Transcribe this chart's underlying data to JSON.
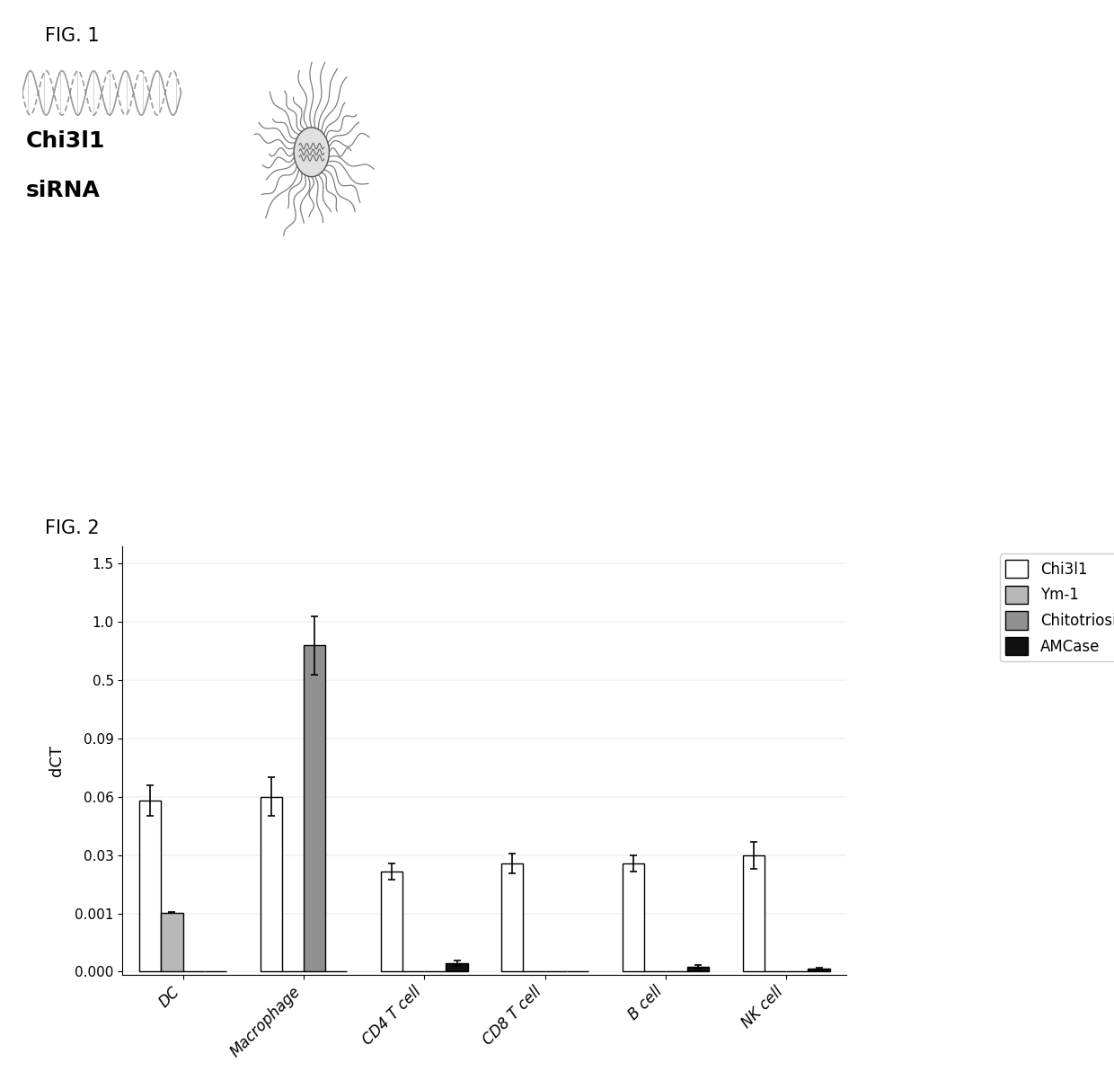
{
  "categories": [
    "DC",
    "Macrophage",
    "CD4 T cell",
    "CD8 T cell",
    "B cell",
    "NK cell"
  ],
  "series": {
    "Chi3l1": [
      0.058,
      0.06,
      0.022,
      0.026,
      0.026,
      0.03
    ],
    "Ym-1": [
      0.0013,
      0.0,
      0.0,
      0.0,
      0.0,
      0.0
    ],
    "Chitotriosidase": [
      0.0,
      0.8,
      0.0,
      0.0,
      0.0,
      0.0
    ],
    "AMCase": [
      0.0,
      0.0,
      0.00015,
      0.0,
      8e-05,
      5e-05
    ]
  },
  "errors": {
    "Chi3l1": [
      0.008,
      0.01,
      0.004,
      0.005,
      0.004,
      0.007
    ],
    "Ym-1": [
      0.0002,
      0.0,
      0.0,
      0.0,
      0.0,
      0.0
    ],
    "Chitotriosidase": [
      0.0,
      0.25,
      0.0,
      0.0,
      0.0,
      0.0
    ],
    "AMCase": [
      0.0,
      0.0,
      5e-05,
      0.0,
      3e-05,
      2e-05
    ]
  },
  "colors": {
    "Chi3l1": "#ffffff",
    "Ym-1": "#b8b8b8",
    "Chitotriosidase": "#909090",
    "AMCase": "#101010"
  },
  "tick_values": [
    0.0,
    0.001,
    0.03,
    0.06,
    0.09,
    0.5,
    1.0,
    1.5
  ],
  "tick_positions": [
    0,
    1,
    2,
    3,
    4,
    5,
    6,
    7
  ],
  "bar_width": 0.18,
  "ylabel": "dCT",
  "fig1_label": "FIG. 1",
  "fig2_label": "FIG. 2",
  "background": "#ffffff",
  "edgecolor": "#000000"
}
